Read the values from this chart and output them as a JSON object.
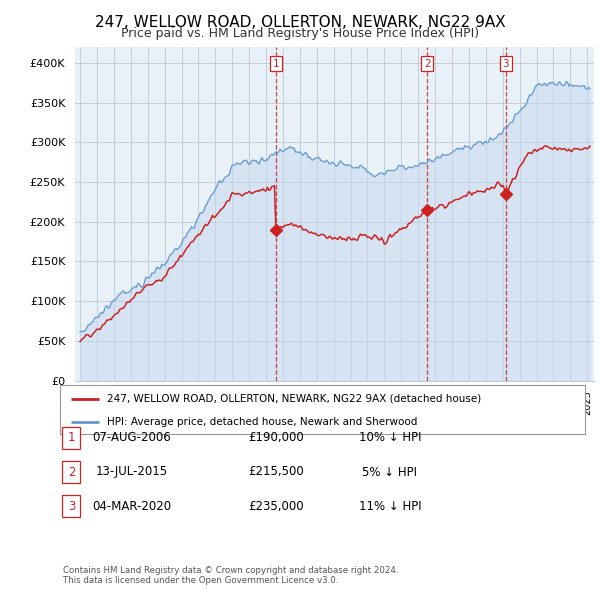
{
  "title": "247, WELLOW ROAD, OLLERTON, NEWARK, NG22 9AX",
  "subtitle": "Price paid vs. HM Land Registry's House Price Index (HPI)",
  "title_fontsize": 11,
  "subtitle_fontsize": 9,
  "background_color": "#ffffff",
  "plot_bg_color": "#e8f0f8",
  "grid_color": "#c0ccd8",
  "hpi_color": "#6699cc",
  "hpi_fill_color": "#c5d8ee",
  "price_color": "#cc2222",
  "vline_color": "#cc2222",
  "purchases": [
    {
      "date_num": 2006.58,
      "price": 190000,
      "label": "1"
    },
    {
      "date_num": 2015.53,
      "price": 215500,
      "label": "2"
    },
    {
      "date_num": 2020.17,
      "price": 235000,
      "label": "3"
    }
  ],
  "legend_entries": [
    "247, WELLOW ROAD, OLLERTON, NEWARK, NG22 9AX (detached house)",
    "HPI: Average price, detached house, Newark and Sherwood"
  ],
  "table_rows": [
    [
      "1",
      "07-AUG-2006",
      "£190,000",
      "10% ↓ HPI"
    ],
    [
      "2",
      "13-JUL-2015",
      "£215,500",
      "5% ↓ HPI"
    ],
    [
      "3",
      "04-MAR-2020",
      "£235,000",
      "11% ↓ HPI"
    ]
  ],
  "footnote": "Contains HM Land Registry data © Crown copyright and database right 2024.\nThis data is licensed under the Open Government Licence v3.0.",
  "ylim": [
    0,
    420000
  ],
  "yticks": [
    0,
    50000,
    100000,
    150000,
    200000,
    250000,
    300000,
    350000,
    400000
  ],
  "ytick_labels": [
    "£0",
    "£50K",
    "£100K",
    "£150K",
    "£200K",
    "£250K",
    "£300K",
    "£350K",
    "£400K"
  ],
  "xlim_start": 1994.7,
  "xlim_end": 2025.4
}
